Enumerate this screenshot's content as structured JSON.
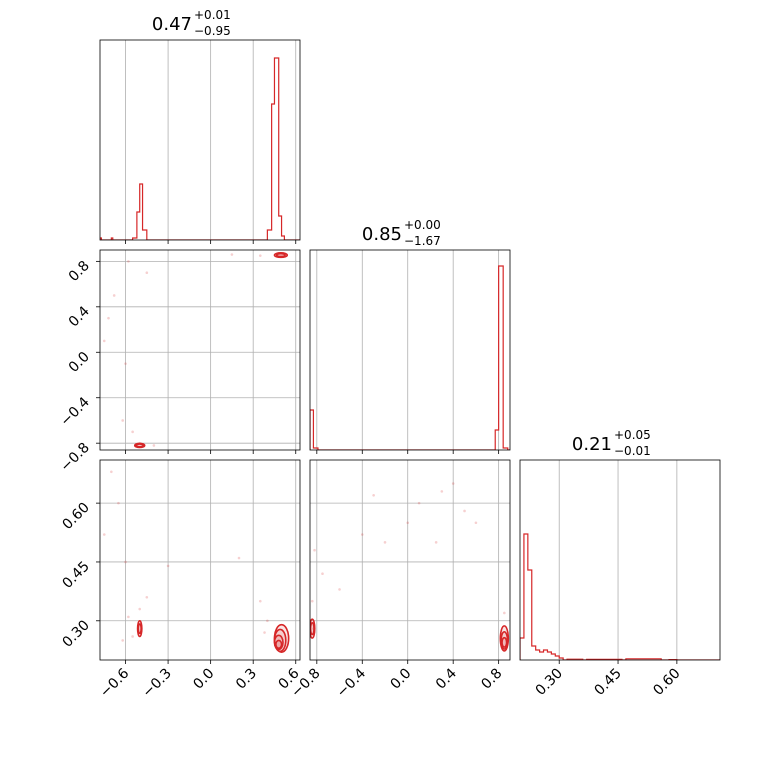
{
  "chart_data": {
    "type": "corner",
    "color": "#d62728",
    "grid": true,
    "titles": [
      {
        "value": "0.47",
        "plus": "+0.01",
        "minus": "−0.95"
      },
      {
        "value": "0.85",
        "plus": "+0.00",
        "minus": "−1.67"
      },
      {
        "value": "0.21",
        "plus": "+0.05",
        "minus": "−0.01"
      }
    ],
    "params": [
      {
        "range": [
          -0.78,
          0.63
        ],
        "ticks": [
          -0.6,
          -0.3,
          0.0,
          0.3,
          0.6
        ],
        "tick_labels": [
          "−0.6",
          "−0.3",
          "0.0",
          "0.3",
          "0.6"
        ]
      },
      {
        "range": [
          -0.86,
          0.9
        ],
        "ticks": [
          -0.8,
          -0.4,
          0.0,
          0.4,
          0.8
        ],
        "tick_labels": [
          "−0.8",
          "−0.4",
          "0.0",
          "0.4",
          "0.8"
        ]
      },
      {
        "range": [
          0.2,
          0.71
        ],
        "ticks": [
          0.3,
          0.45,
          0.6
        ],
        "tick_labels": [
          "0.30",
          "0.45",
          "0.60"
        ]
      }
    ],
    "hist1d": [
      {
        "edges": [
          -0.78,
          -0.77,
          -0.75,
          -0.7,
          -0.69,
          -0.55,
          -0.52,
          -0.5,
          -0.48,
          -0.45,
          0.4,
          0.43,
          0.45,
          0.48,
          0.5,
          0.52,
          0.55,
          0.63
        ],
        "counts": [
          0.01,
          0,
          0,
          0.01,
          0,
          0.01,
          0.14,
          0.28,
          0.05,
          0,
          0.05,
          0.68,
          0.91,
          0.12,
          0.02,
          0,
          0
        ]
      },
      {
        "edges": [
          -0.86,
          -0.83,
          -0.79,
          0.77,
          0.8,
          0.84,
          0.88,
          0.9
        ],
        "counts": [
          0.2,
          0.01,
          0,
          0.1,
          0.92,
          0.01,
          0
        ]
      },
      {
        "edges": [
          0.2,
          0.21,
          0.22,
          0.23,
          0.24,
          0.25,
          0.26,
          0.27,
          0.28,
          0.29,
          0.3,
          0.31,
          0.32,
          0.36,
          0.37,
          0.46,
          0.47,
          0.56,
          0.58,
          0.6,
          0.71
        ],
        "counts": [
          0.11,
          0.63,
          0.45,
          0.07,
          0.05,
          0.04,
          0.05,
          0.04,
          0.03,
          0.02,
          0.01,
          0,
          0.004,
          0,
          0.003,
          0,
          0.006,
          0,
          0.002,
          0
        ]
      }
    ],
    "scatter2d": [
      {
        "x": [
          -0.68,
          -0.72,
          -0.75,
          -0.6,
          -0.45,
          -0.58,
          0.15,
          0.35,
          -0.4,
          -0.62,
          -0.55,
          -0.5
        ],
        "y": [
          0.5,
          0.3,
          0.1,
          -0.1,
          0.7,
          0.8,
          0.86,
          0.85,
          -0.82,
          -0.6,
          -0.7,
          -0.8
        ]
      },
      {
        "x": [
          -0.7,
          -0.65,
          -0.75,
          -0.6,
          -0.45,
          -0.3,
          0.2,
          0.4,
          -0.58,
          -0.55,
          0.38,
          0.35,
          -0.5,
          -0.62
        ],
        "y": [
          0.68,
          0.6,
          0.52,
          0.45,
          0.36,
          0.44,
          0.46,
          0.3,
          0.31,
          0.26,
          0.27,
          0.35,
          0.33,
          0.25
        ]
      },
      {
        "x": [
          -0.82,
          -0.75,
          -0.6,
          -0.4,
          -0.2,
          0.0,
          0.1,
          0.25,
          0.4,
          0.6,
          0.85,
          -0.84,
          -0.83,
          -0.3,
          0.3,
          0.5
        ],
        "y": [
          0.48,
          0.42,
          0.38,
          0.52,
          0.5,
          0.55,
          0.6,
          0.5,
          0.65,
          0.55,
          0.32,
          0.35,
          0.28,
          0.62,
          0.63,
          0.58
        ]
      }
    ],
    "contours2d": [
      {
        "ellipses": [
          {
            "cx": 0.495,
            "cy": 0.855,
            "rx": 0.03,
            "ry": 0.012
          },
          {
            "cx": 0.495,
            "cy": 0.855,
            "rx": 0.045,
            "ry": 0.02
          },
          {
            "cx": -0.5,
            "cy": -0.82,
            "rx": 0.025,
            "ry": 0.012
          },
          {
            "cx": -0.5,
            "cy": -0.82,
            "rx": 0.035,
            "ry": 0.018
          }
        ]
      },
      {
        "ellipses": [
          {
            "cx": -0.5,
            "cy": 0.28,
            "rx": 0.01,
            "ry": 0.012
          },
          {
            "cx": -0.5,
            "cy": 0.28,
            "rx": 0.015,
            "ry": 0.02
          },
          {
            "cx": 0.48,
            "cy": 0.24,
            "rx": 0.02,
            "ry": 0.01
          },
          {
            "cx": 0.48,
            "cy": 0.245,
            "rx": 0.03,
            "ry": 0.018
          },
          {
            "cx": 0.49,
            "cy": 0.25,
            "rx": 0.04,
            "ry": 0.028
          },
          {
            "cx": 0.5,
            "cy": 0.255,
            "rx": 0.05,
            "ry": 0.035
          }
        ]
      },
      {
        "ellipses": [
          {
            "cx": -0.84,
            "cy": 0.28,
            "rx": 0.015,
            "ry": 0.015
          },
          {
            "cx": -0.84,
            "cy": 0.28,
            "rx": 0.022,
            "ry": 0.024
          },
          {
            "cx": 0.85,
            "cy": 0.245,
            "rx": 0.02,
            "ry": 0.012
          },
          {
            "cx": 0.85,
            "cy": 0.25,
            "rx": 0.028,
            "ry": 0.022
          },
          {
            "cx": 0.85,
            "cy": 0.255,
            "rx": 0.035,
            "ry": 0.032
          }
        ]
      }
    ]
  }
}
